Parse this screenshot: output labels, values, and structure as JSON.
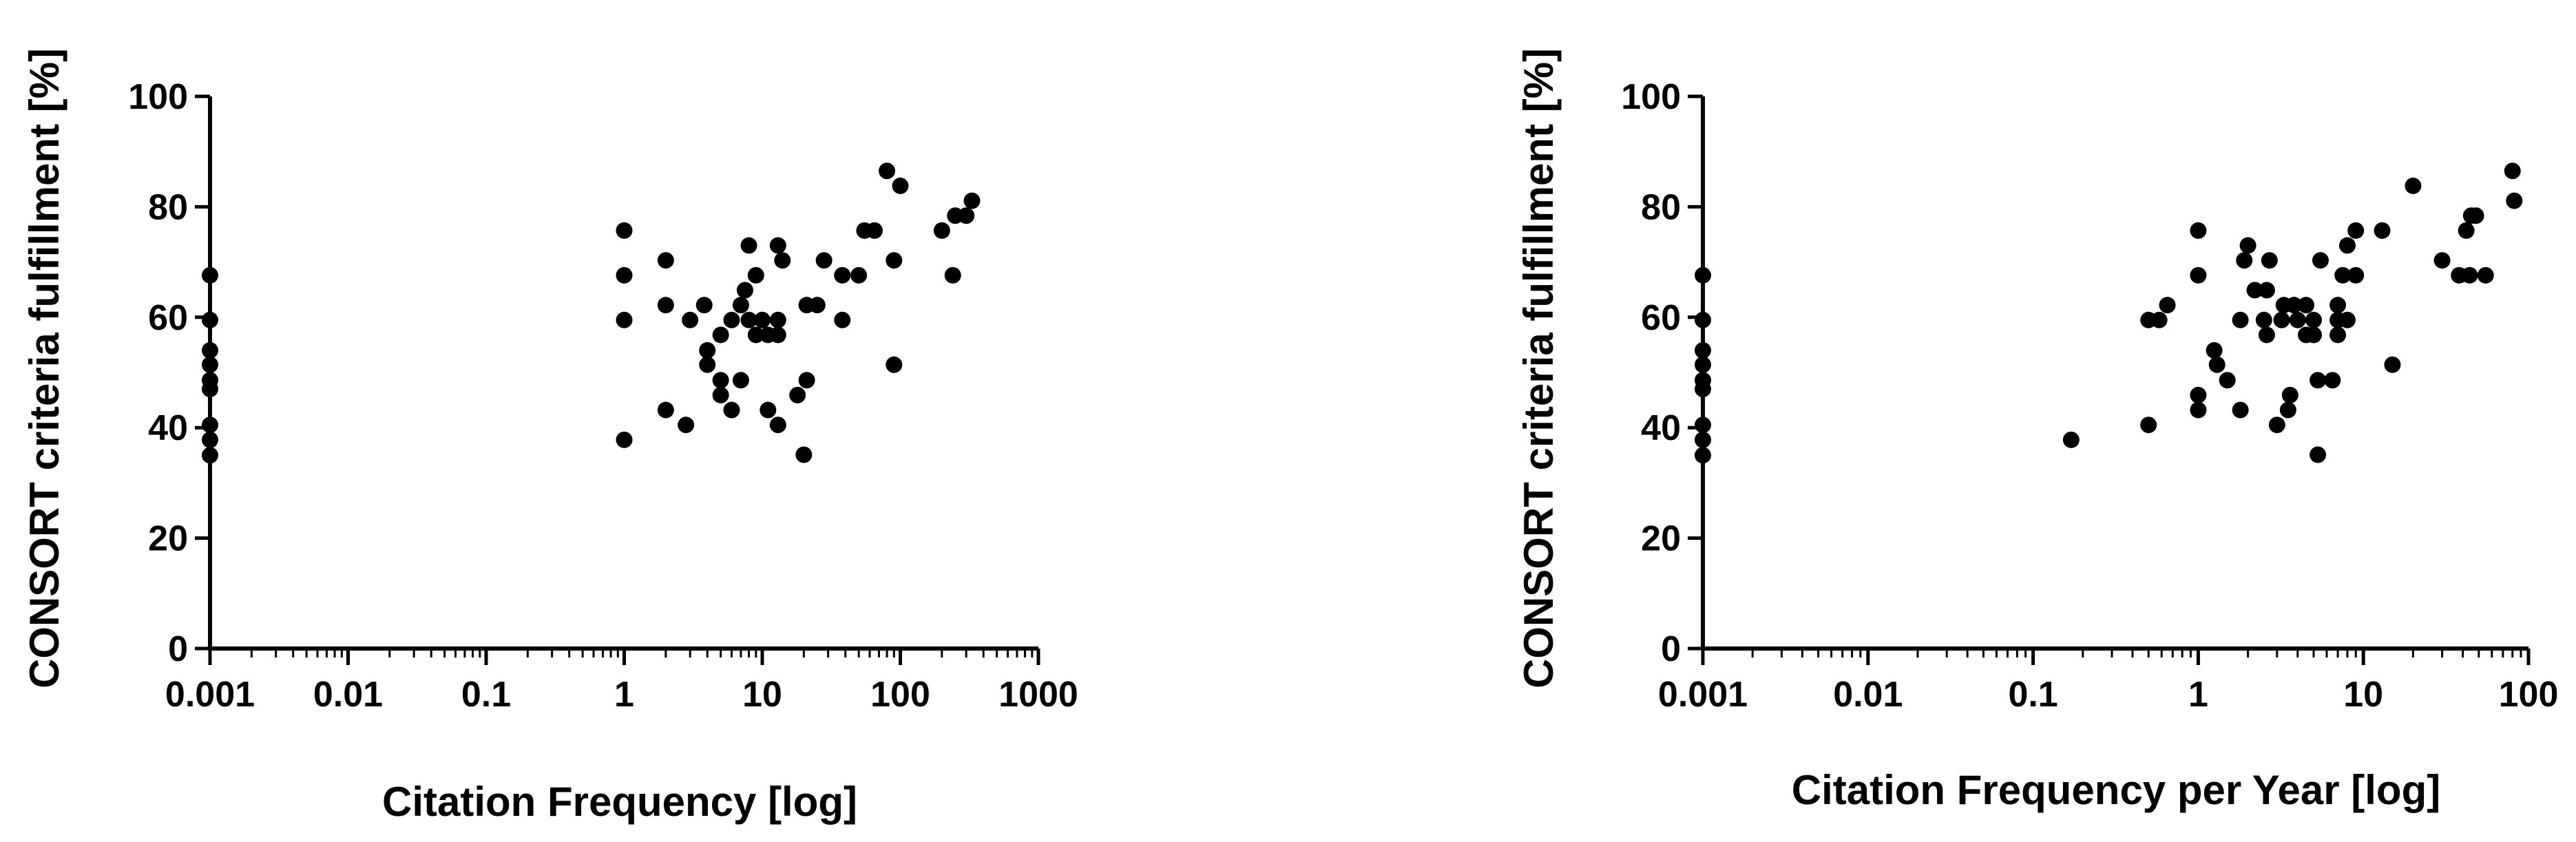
{
  "chart_data": [
    {
      "type": "scatter",
      "xscale": "log",
      "xlabel": "Citation Frequency [log]",
      "ylabel": "CONSORT criteria fulfillment [%]",
      "xlim": [
        0.001,
        1000
      ],
      "ylim": [
        0,
        100
      ],
      "x_ticks": [
        "0.001",
        "0.01",
        "0.1",
        "1",
        "10",
        "100",
        "1000"
      ],
      "y_ticks": [
        "0",
        "20",
        "40",
        "60",
        "80",
        "100"
      ],
      "grid": false,
      "marker_color": "#000000",
      "points": [
        [
          0.001,
          35
        ],
        [
          0.001,
          37.8
        ],
        [
          0.001,
          40.5
        ],
        [
          0.001,
          47
        ],
        [
          0.001,
          48.6
        ],
        [
          0.001,
          51.4
        ],
        [
          0.001,
          54
        ],
        [
          0.001,
          59.5
        ],
        [
          0.001,
          67.6
        ],
        [
          1,
          37.8
        ],
        [
          1,
          59.5
        ],
        [
          1,
          67.6
        ],
        [
          1,
          75.7
        ],
        [
          2,
          43.2
        ],
        [
          2,
          62.2
        ],
        [
          2,
          70.3
        ],
        [
          2.8,
          40.5
        ],
        [
          3,
          59.5
        ],
        [
          3.8,
          62.2
        ],
        [
          4,
          54
        ],
        [
          4,
          51.4
        ],
        [
          5,
          48.6
        ],
        [
          5,
          45.9
        ],
        [
          5,
          56.8
        ],
        [
          6,
          43.2
        ],
        [
          6,
          59.5
        ],
        [
          7,
          48.6
        ],
        [
          7,
          62.2
        ],
        [
          7.5,
          64.9
        ],
        [
          8,
          59.5
        ],
        [
          8,
          73
        ],
        [
          9,
          56.8
        ],
        [
          9,
          67.6
        ],
        [
          10,
          59.5
        ],
        [
          11,
          56.8
        ],
        [
          11,
          43.2
        ],
        [
          13,
          40.5
        ],
        [
          13,
          73
        ],
        [
          13,
          59.5
        ],
        [
          13,
          56.8
        ],
        [
          14,
          70.3
        ],
        [
          18,
          45.9
        ],
        [
          20,
          35.1
        ],
        [
          21,
          48.6
        ],
        [
          21,
          62.2
        ],
        [
          25,
          62.2
        ],
        [
          28,
          70.3
        ],
        [
          38,
          59.5
        ],
        [
          38,
          67.6
        ],
        [
          50,
          67.6
        ],
        [
          55,
          75.7
        ],
        [
          65,
          75.7
        ],
        [
          80,
          86.5
        ],
        [
          90,
          51.4
        ],
        [
          90,
          70.3
        ],
        [
          100,
          83.8
        ],
        [
          200,
          75.7
        ],
        [
          240,
          67.6
        ],
        [
          250,
          78.4
        ],
        [
          300,
          78.4
        ],
        [
          330,
          81.1
        ]
      ]
    },
    {
      "type": "scatter",
      "xscale": "log",
      "xlabel": "Citation Frequency per Year [log]",
      "ylabel": "CONSORT criteria fulfillment [%]",
      "xlim": [
        0.001,
        100
      ],
      "ylim": [
        0,
        100
      ],
      "x_ticks": [
        "0.001",
        "0.01",
        "0.1",
        "1",
        "10",
        "100"
      ],
      "y_ticks": [
        "0",
        "20",
        "40",
        "60",
        "80",
        "100"
      ],
      "grid": false,
      "marker_color": "#000000",
      "points": [
        [
          0.001,
          35
        ],
        [
          0.001,
          37.8
        ],
        [
          0.001,
          40.5
        ],
        [
          0.001,
          47
        ],
        [
          0.001,
          48.6
        ],
        [
          0.001,
          51.4
        ],
        [
          0.001,
          54
        ],
        [
          0.001,
          59.5
        ],
        [
          0.001,
          67.6
        ],
        [
          0.17,
          37.8
        ],
        [
          0.5,
          40.5
        ],
        [
          0.5,
          59.5
        ],
        [
          0.58,
          59.5
        ],
        [
          0.65,
          62.2
        ],
        [
          1,
          43.2
        ],
        [
          1,
          45.9
        ],
        [
          1,
          67.6
        ],
        [
          1,
          75.7
        ],
        [
          1.25,
          54
        ],
        [
          1.3,
          51.4
        ],
        [
          1.5,
          48.6
        ],
        [
          1.8,
          43.2
        ],
        [
          1.8,
          59.5
        ],
        [
          1.9,
          70.3
        ],
        [
          2,
          73
        ],
        [
          2.2,
          64.9
        ],
        [
          2.5,
          59.5
        ],
        [
          2.6,
          64.9
        ],
        [
          2.6,
          56.8
        ],
        [
          2.7,
          70.3
        ],
        [
          3,
          40.5
        ],
        [
          3.2,
          59.5
        ],
        [
          3.3,
          62.2
        ],
        [
          3.5,
          43.2
        ],
        [
          3.6,
          45.9
        ],
        [
          3.8,
          62.2
        ],
        [
          4,
          59.5
        ],
        [
          4.5,
          56.8
        ],
        [
          4.5,
          62.2
        ],
        [
          5,
          56.8
        ],
        [
          5,
          59.5
        ],
        [
          5.3,
          35.1
        ],
        [
          5.3,
          48.6
        ],
        [
          5.5,
          70.3
        ],
        [
          6.5,
          48.6
        ],
        [
          7,
          56.8
        ],
        [
          7,
          59.5
        ],
        [
          7,
          62.2
        ],
        [
          7.5,
          67.6
        ],
        [
          8,
          73
        ],
        [
          8,
          59.5
        ],
        [
          9,
          67.6
        ],
        [
          9,
          75.7
        ],
        [
          13,
          75.7
        ],
        [
          15,
          51.4
        ],
        [
          20,
          83.8
        ],
        [
          30,
          70.3
        ],
        [
          38,
          67.6
        ],
        [
          42,
          75.7
        ],
        [
          44,
          67.6
        ],
        [
          45,
          78.4
        ],
        [
          48,
          78.4
        ],
        [
          55,
          67.6
        ],
        [
          80,
          86.5
        ],
        [
          82,
          81.1
        ]
      ]
    }
  ]
}
